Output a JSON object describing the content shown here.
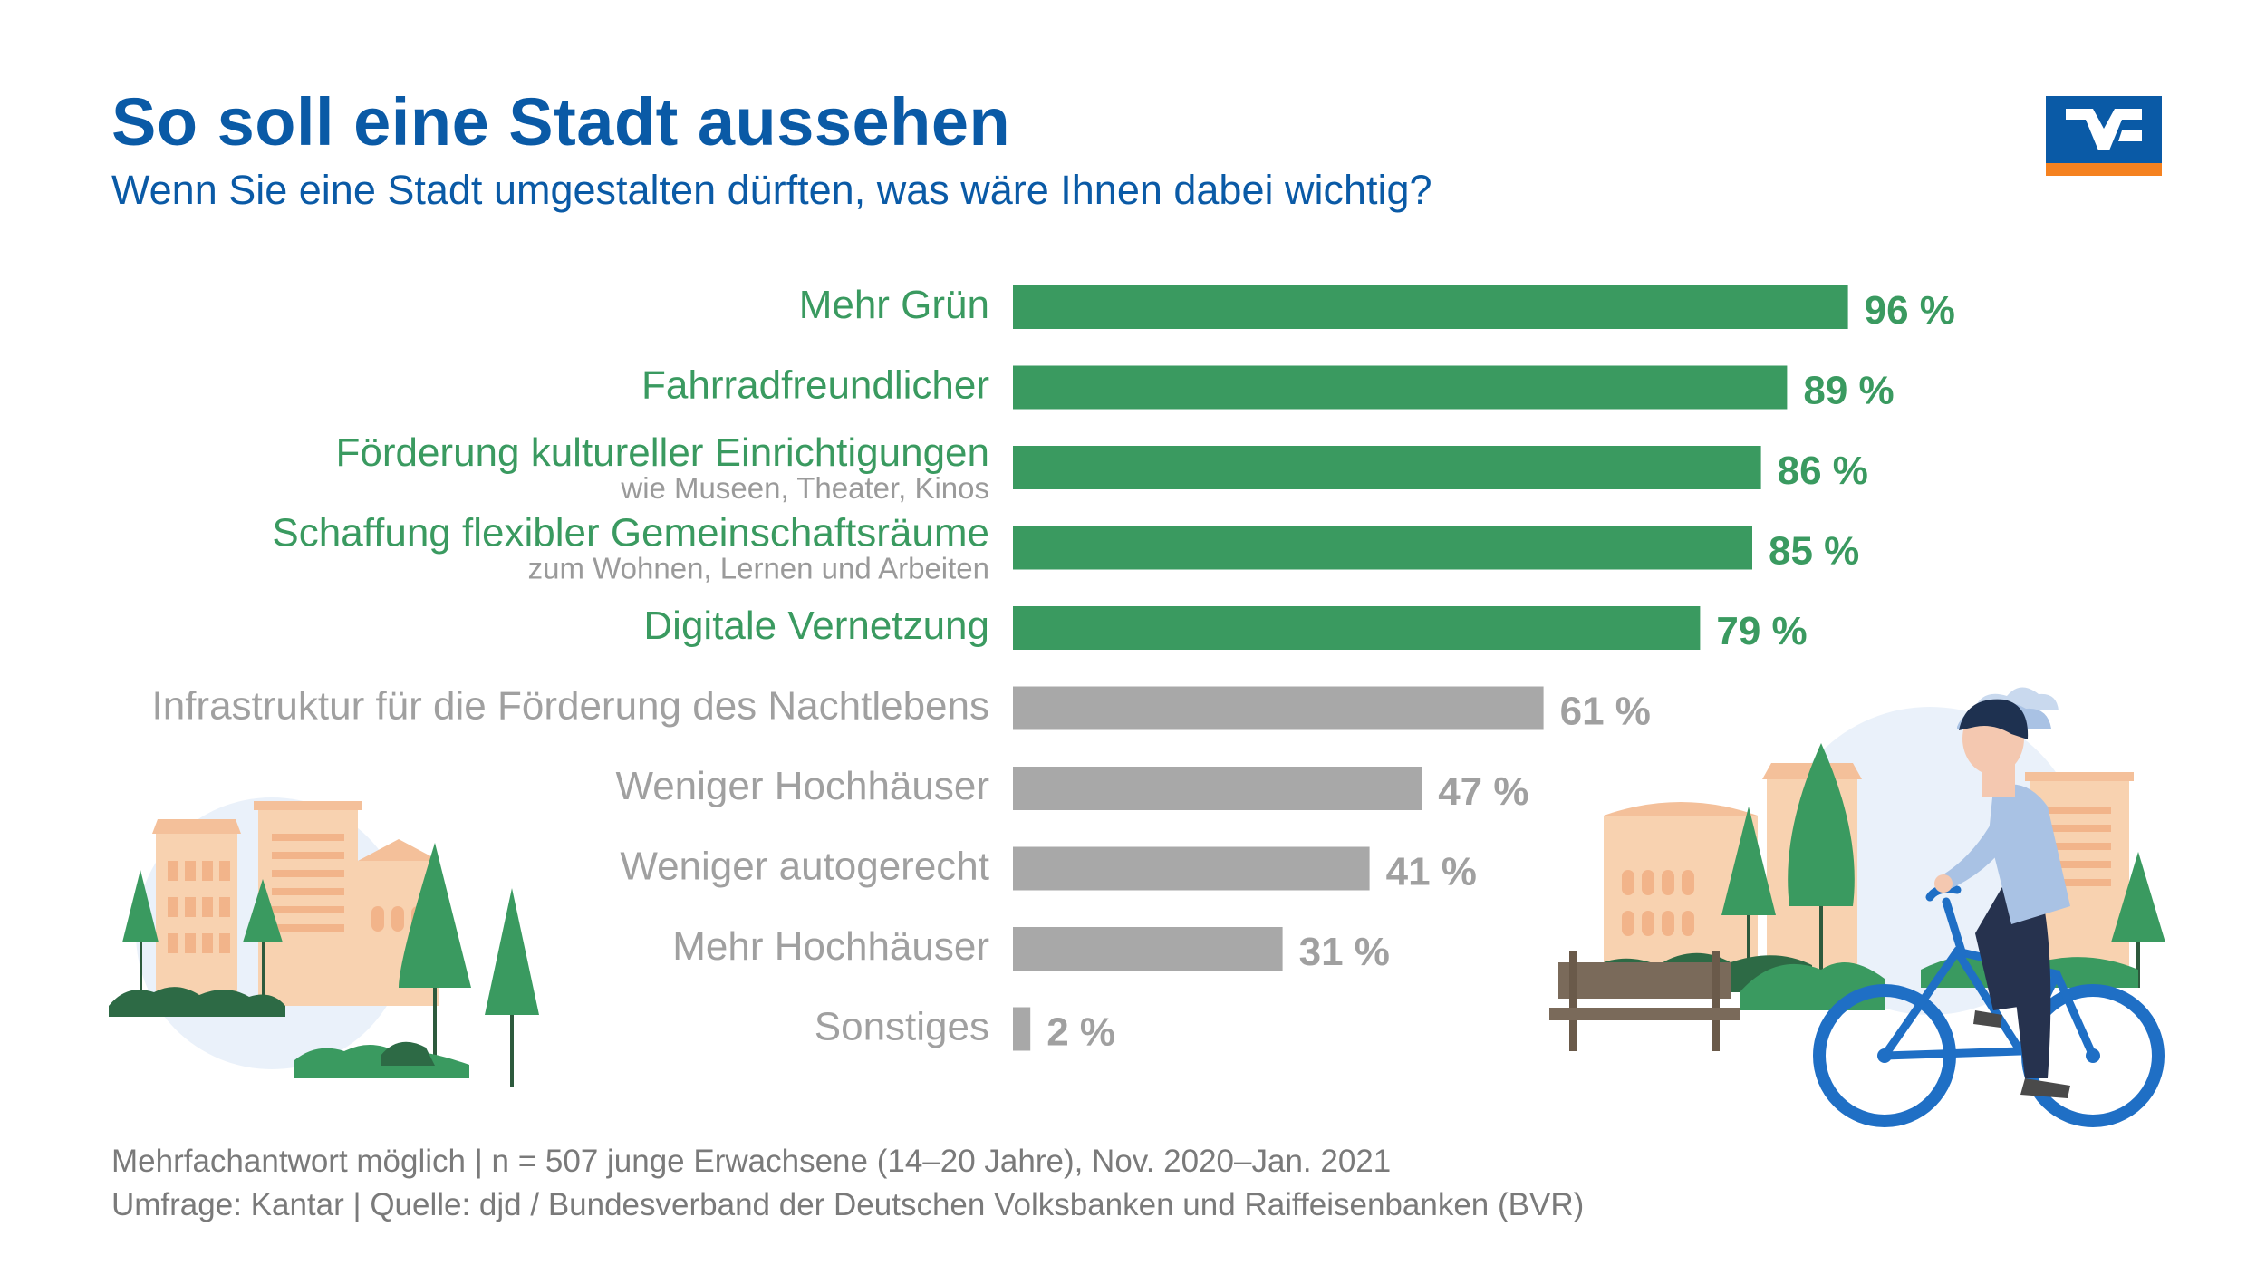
{
  "header": {
    "title": "So soll eine Stadt aussehen",
    "subtitle": "Wenn Sie eine Stadt umgestalten dürften, was wäre Ihnen dabei wichtig?"
  },
  "footer": {
    "note": "Mehrfachantwort möglich | n = 507 junge Erwachsene (14–20 Jahre), Nov. 2020–Jan. 2021",
    "source": "Umfrage: Kantar | Quelle: djd / Bundesverband der Deutschen Volksbanken und Raiffeisenbanken (BVR)"
  },
  "colors": {
    "title": "#0a5aa6",
    "highlight": "#3a9a60",
    "muted": "#a8a8a8",
    "muted_text": "#a0a0a0",
    "logo_blue": "#0a5aa6",
    "logo_orange": "#f58220"
  },
  "chart_data": {
    "type": "bar",
    "orientation": "horizontal",
    "unit": "%",
    "xlim": [
      0,
      100
    ],
    "grid": false,
    "legend": "none",
    "categories": [
      "Mehr Grün",
      "Fahrradfreundlicher",
      "Förderung kultureller Einrichtigungen",
      "Schaffung flexibler Gemeinschaftsräume",
      "Digitale Vernetzung",
      "Infrastruktur für die Förderung des Nachtlebens",
      "Weniger Hochhäuser",
      "Weniger autogerecht",
      "Mehr Hochhäuser",
      "Sonstiges"
    ],
    "sublabels": [
      "",
      "",
      "wie Museen, Theater, Kinos",
      "zum Wohnen, Lernen und Arbeiten",
      "",
      "",
      "",
      "",
      "",
      ""
    ],
    "values": [
      96,
      89,
      86,
      85,
      79,
      61,
      47,
      41,
      31,
      2
    ],
    "value_labels": [
      "96 %",
      "89 %",
      "86 %",
      "85 %",
      "79 %",
      "61 %",
      "47 %",
      "41 %",
      "31 %",
      "2 %"
    ],
    "highlighted": [
      true,
      true,
      true,
      true,
      true,
      false,
      false,
      false,
      false,
      false
    ]
  }
}
